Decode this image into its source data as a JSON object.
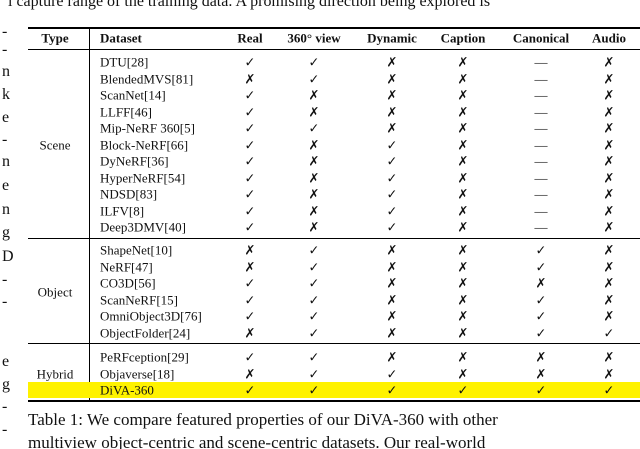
{
  "body_top": "l capture range of the training data. A promising direction being explored is",
  "margin_fragments": [
    "-",
    "-",
    "n",
    "k",
    "e",
    "-",
    "n",
    "e",
    "n",
    "g",
    "D",
    "-",
    "-",
    "e",
    "g",
    "-",
    "-"
  ],
  "table": {
    "columns": [
      "Type",
      "Dataset",
      "Real",
      "360° view",
      "Dynamic",
      "Caption",
      "Canonical",
      "Audio"
    ],
    "groups": [
      {
        "type": "Scene",
        "rows": [
          {
            "dataset": "DTU[28]",
            "cells": [
              "✓",
              "✓",
              "✗",
              "✗",
              "—",
              "✗"
            ]
          },
          {
            "dataset": "BlendedMVS[81]",
            "cells": [
              "✗",
              "✓",
              "✗",
              "✗",
              "—",
              "✗"
            ]
          },
          {
            "dataset": "ScanNet[14]",
            "cells": [
              "✓",
              "✗",
              "✗",
              "✗",
              "—",
              "✗"
            ]
          },
          {
            "dataset": "LLFF[46]",
            "cells": [
              "✓",
              "✗",
              "✗",
              "✗",
              "—",
              "✗"
            ]
          },
          {
            "dataset": "Mip-NeRF 360[5]",
            "cells": [
              "✓",
              "✓",
              "✗",
              "✗",
              "—",
              "✗"
            ]
          },
          {
            "dataset": "Block-NeRF[66]",
            "cells": [
              "✓",
              "✗",
              "✓",
              "✗",
              "—",
              "✗"
            ]
          },
          {
            "dataset": "DyNeRF[36]",
            "cells": [
              "✓",
              "✗",
              "✓",
              "✗",
              "—",
              "✗"
            ]
          },
          {
            "dataset": "HyperNeRF[54]",
            "cells": [
              "✓",
              "✗",
              "✓",
              "✗",
              "—",
              "✗"
            ]
          },
          {
            "dataset": "NDSD[83]",
            "cells": [
              "✓",
              "✗",
              "✓",
              "✗",
              "—",
              "✗"
            ]
          },
          {
            "dataset": "ILFV[8]",
            "cells": [
              "✓",
              "✗",
              "✓",
              "✗",
              "—",
              "✗"
            ]
          },
          {
            "dataset": "Deep3DMV[40]",
            "cells": [
              "✓",
              "✗",
              "✓",
              "✗",
              "—",
              "✗"
            ]
          }
        ]
      },
      {
        "type": "Object",
        "rows": [
          {
            "dataset": "ShapeNet[10]",
            "cells": [
              "✗",
              "✓",
              "✗",
              "✗",
              "✓",
              "✗"
            ]
          },
          {
            "dataset": "NeRF[47]",
            "cells": [
              "✗",
              "✓",
              "✗",
              "✗",
              "✓",
              "✗"
            ]
          },
          {
            "dataset": "CO3D[56]",
            "cells": [
              "✓",
              "✓",
              "✗",
              "✗",
              "✗",
              "✗"
            ]
          },
          {
            "dataset": "ScanNeRF[15]",
            "cells": [
              "✓",
              "✓",
              "✗",
              "✗",
              "✓",
              "✗"
            ]
          },
          {
            "dataset": "OmniObject3D[76]",
            "cells": [
              "✓",
              "✓",
              "✗",
              "✗",
              "✓",
              "✗"
            ]
          },
          {
            "dataset": "ObjectFolder[24]",
            "cells": [
              "✗",
              "✓",
              "✗",
              "✗",
              "✓",
              "✓"
            ]
          }
        ]
      },
      {
        "type": "Hybrid",
        "rows": [
          {
            "dataset": "PeRFception[29]",
            "cells": [
              "✓",
              "✓",
              "✗",
              "✗",
              "✗",
              "✗"
            ]
          },
          {
            "dataset": "Objaverse[18]",
            "cells": [
              "✗",
              "✓",
              "✓",
              "✗",
              "✗",
              "✗"
            ]
          },
          {
            "dataset": "DiVA-360",
            "cells": [
              "✓",
              "✓",
              "✓",
              "✓",
              "✓",
              "✓"
            ]
          }
        ]
      }
    ]
  },
  "caption": [
    "Table 1: We compare featured properties of our DiVA-360 with other",
    "multiview object-centric and scene-centric datasets. Our real-world"
  ]
}
